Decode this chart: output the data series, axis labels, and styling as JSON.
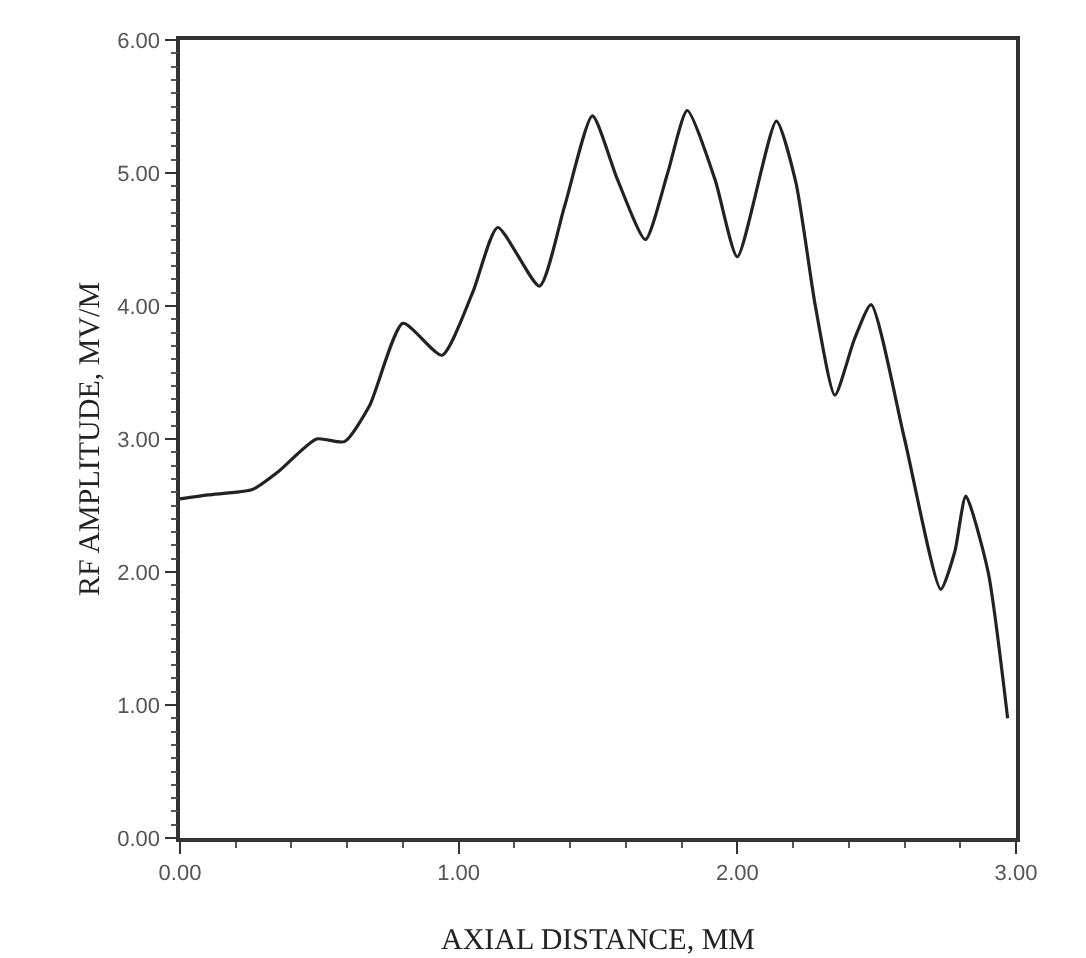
{
  "chart_data": {
    "type": "line",
    "xlabel": "AXIAL DISTANCE, MM",
    "ylabel": "RF AMPLITUDE, MV/M",
    "x": [
      0,
      0.1,
      0.26,
      0.35,
      0.49,
      0.59,
      0.68,
      0.8,
      0.94,
      1.05,
      1.14,
      1.29,
      1.38,
      1.48,
      1.57,
      1.67,
      1.75,
      1.82,
      1.92,
      2.0,
      2.14,
      2.21,
      2.28,
      2.35,
      2.42,
      2.48,
      2.6,
      2.73,
      2.78,
      2.82,
      2.9,
      2.97
    ],
    "series": [
      {
        "color": "#222222",
        "values": [
          2.55,
          2.58,
          2.62,
          2.75,
          3.0,
          2.98,
          3.25,
          3.87,
          3.63,
          4.1,
          4.59,
          4.15,
          4.75,
          5.43,
          4.95,
          4.5,
          5.0,
          5.47,
          4.95,
          4.37,
          5.39,
          4.93,
          4.0,
          3.33,
          3.75,
          4.01,
          3.0,
          1.87,
          2.15,
          2.57,
          2.0,
          0.9
        ]
      }
    ],
    "xlim": [
      0,
      3
    ],
    "xticks": [
      {
        "value": 0,
        "label": "0.00"
      },
      {
        "value": 1,
        "label": "1.00"
      },
      {
        "value": 2,
        "label": "2.00"
      },
      {
        "value": 3,
        "label": "3.00"
      }
    ],
    "ylim": [
      0,
      6
    ],
    "yticks": [
      {
        "value": 0,
        "label": "0.00"
      },
      {
        "value": 1,
        "label": "1.00"
      },
      {
        "value": 2,
        "label": "2.00"
      },
      {
        "value": 3,
        "label": "3.00"
      },
      {
        "value": 4,
        "label": "4.00"
      },
      {
        "value": 5,
        "label": "5.00"
      },
      {
        "value": 6,
        "label": "6.00"
      }
    ],
    "grid": false,
    "marker": "none",
    "line_style": "solid"
  }
}
